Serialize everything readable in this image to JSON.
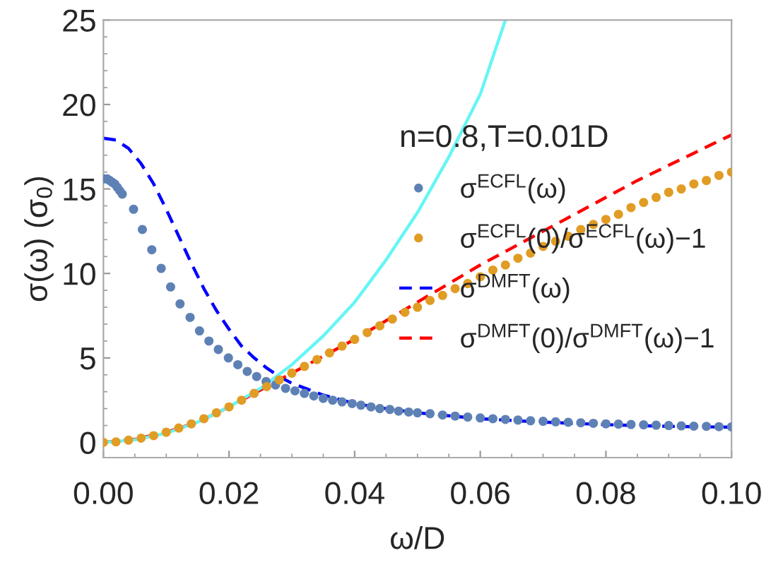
{
  "chart_data": {
    "type": "line",
    "xlabel": "ω/D",
    "ylabel": "σ(ω) (σ$_{0}$)",
    "legend_title": "n=0.8,T=0.01D",
    "legend": "right",
    "xlim": [
      0,
      0.1
    ],
    "ylim": [
      -0.9,
      25
    ],
    "xticks": [
      {
        "value": 0,
        "label": "0.00"
      },
      0.02,
      0.04,
      0.06,
      0.08,
      {
        "value": 0.1,
        "label": "0.10"
      }
    ],
    "yticks": [
      0,
      5,
      10,
      15,
      20,
      25
    ],
    "grid": false,
    "series": [
      {
        "name": "σ$^{ECFL}$(ω)",
        "type": "scatter",
        "marker": "circle",
        "color": "#5e81b5",
        "x": [
          0.0002,
          0.0006,
          0.001,
          0.0014,
          0.0018,
          0.0022,
          0.0026,
          0.003,
          0.0048,
          0.0062,
          0.0077,
          0.0092,
          0.0107,
          0.0122,
          0.0138,
          0.0153,
          0.0168,
          0.0183,
          0.0199,
          0.0214,
          0.0229,
          0.0244,
          0.0259,
          0.0274,
          0.029,
          0.0305,
          0.032,
          0.0335,
          0.035,
          0.0365,
          0.038,
          0.0396,
          0.041,
          0.0426,
          0.044,
          0.0456,
          0.047,
          0.0486,
          0.05,
          0.052,
          0.054,
          0.056,
          0.058,
          0.06,
          0.062,
          0.064,
          0.066,
          0.068,
          0.07,
          0.072,
          0.074,
          0.076,
          0.078,
          0.08,
          0.082,
          0.084,
          0.086,
          0.088,
          0.09,
          0.092,
          0.094,
          0.096,
          0.098,
          0.1
        ],
        "values": [
          15.6,
          15.6,
          15.5,
          15.4,
          15.3,
          15.1,
          14.9,
          14.7,
          13.8,
          12.6,
          11.4,
          10.3,
          9.2,
          8.2,
          7.4,
          6.6,
          6.0,
          5.5,
          5.0,
          4.6,
          4.2,
          3.9,
          3.6,
          3.4,
          3.2,
          3.05,
          2.9,
          2.75,
          2.6,
          2.5,
          2.4,
          2.3,
          2.2,
          2.1,
          2.0,
          1.95,
          1.85,
          1.8,
          1.75,
          1.7,
          1.62,
          1.56,
          1.5,
          1.45,
          1.4,
          1.36,
          1.32,
          1.28,
          1.25,
          1.22,
          1.19,
          1.16,
          1.13,
          1.1,
          1.08,
          1.06,
          1.04,
          1.02,
          1.0,
          0.98,
          0.96,
          0.95,
          0.93,
          0.92
        ]
      },
      {
        "name": "σ$^{ECFL}$(0)/σ$^{ECFL}$(ω)−1",
        "type": "scatter",
        "marker": "circle",
        "color": "#e19c24",
        "x": [
          0,
          0.002,
          0.004,
          0.006,
          0.008,
          0.01,
          0.012,
          0.014,
          0.016,
          0.018,
          0.02,
          0.022,
          0.024,
          0.026,
          0.028,
          0.03,
          0.032,
          0.034,
          0.036,
          0.038,
          0.04,
          0.042,
          0.044,
          0.046,
          0.048,
          0.05,
          0.052,
          0.054,
          0.056,
          0.058,
          0.06,
          0.062,
          0.064,
          0.066,
          0.068,
          0.07,
          0.072,
          0.074,
          0.076,
          0.078,
          0.08,
          0.082,
          0.084,
          0.086,
          0.088,
          0.09,
          0.092,
          0.094,
          0.096,
          0.098,
          0.1
        ],
        "values": [
          0,
          0.03,
          0.13,
          0.25,
          0.4,
          0.6,
          0.85,
          1.1,
          1.4,
          1.75,
          2.1,
          2.5,
          2.9,
          3.3,
          3.7,
          4.1,
          4.5,
          4.9,
          5.3,
          5.7,
          6.1,
          6.5,
          6.9,
          7.3,
          7.7,
          8.0,
          8.4,
          8.7,
          9.1,
          9.4,
          9.8,
          10.2,
          10.5,
          10.9,
          11.2,
          11.6,
          11.9,
          12.2,
          12.6,
          12.9,
          13.2,
          13.5,
          13.9,
          14.2,
          14.5,
          14.8,
          15.0,
          15.3,
          15.5,
          15.8,
          16.0
        ]
      },
      {
        "name": "σ$^{DMFT}$(ω)",
        "line_style": "dashed",
        "color": "#0000ff",
        "x": [
          0,
          0.002,
          0.004,
          0.006,
          0.008,
          0.01,
          0.012,
          0.014,
          0.016,
          0.018,
          0.02,
          0.022,
          0.024,
          0.026,
          0.028,
          0.03,
          0.035,
          0.04,
          0.045,
          0.05,
          0.06,
          0.07,
          0.08,
          0.09,
          0.1
        ],
        "values": [
          18.0,
          17.9,
          17.4,
          16.5,
          15.3,
          13.8,
          12.2,
          10.6,
          9.1,
          7.8,
          6.7,
          5.7,
          5.0,
          4.4,
          3.9,
          3.5,
          2.8,
          2.3,
          2.0,
          1.75,
          1.4,
          1.2,
          1.05,
          0.95,
          0.9
        ]
      },
      {
        "name": "σ$^{DMFT}$(0)/σ$^{DMFT}$(ω)−1",
        "line_style": "dashed",
        "color": "#ff0000",
        "x": [
          0,
          0.005,
          0.01,
          0.015,
          0.02,
          0.025,
          0.03,
          0.035,
          0.04,
          0.045,
          0.05,
          0.055,
          0.06,
          0.065,
          0.07,
          0.075,
          0.08,
          0.085,
          0.09,
          0.095,
          0.1
        ],
        "values": [
          0,
          0.18,
          0.6,
          1.2,
          2.1,
          3.1,
          4.1,
          5.1,
          6.1,
          7.2,
          8.3,
          9.4,
          10.5,
          11.5,
          12.5,
          13.5,
          14.5,
          15.5,
          16.4,
          17.3,
          18.2
        ]
      },
      {
        "line_style": "solid",
        "color": "#66f5f5",
        "x": [
          0,
          0.005,
          0.01,
          0.015,
          0.02,
          0.025,
          0.03,
          0.035,
          0.04,
          0.045,
          0.05,
          0.055,
          0.06,
          0.064
        ],
        "values": [
          0,
          0.15,
          0.55,
          1.2,
          2.1,
          3.2,
          4.6,
          6.3,
          8.3,
          10.8,
          13.6,
          16.9,
          20.6,
          25
        ]
      }
    ]
  }
}
